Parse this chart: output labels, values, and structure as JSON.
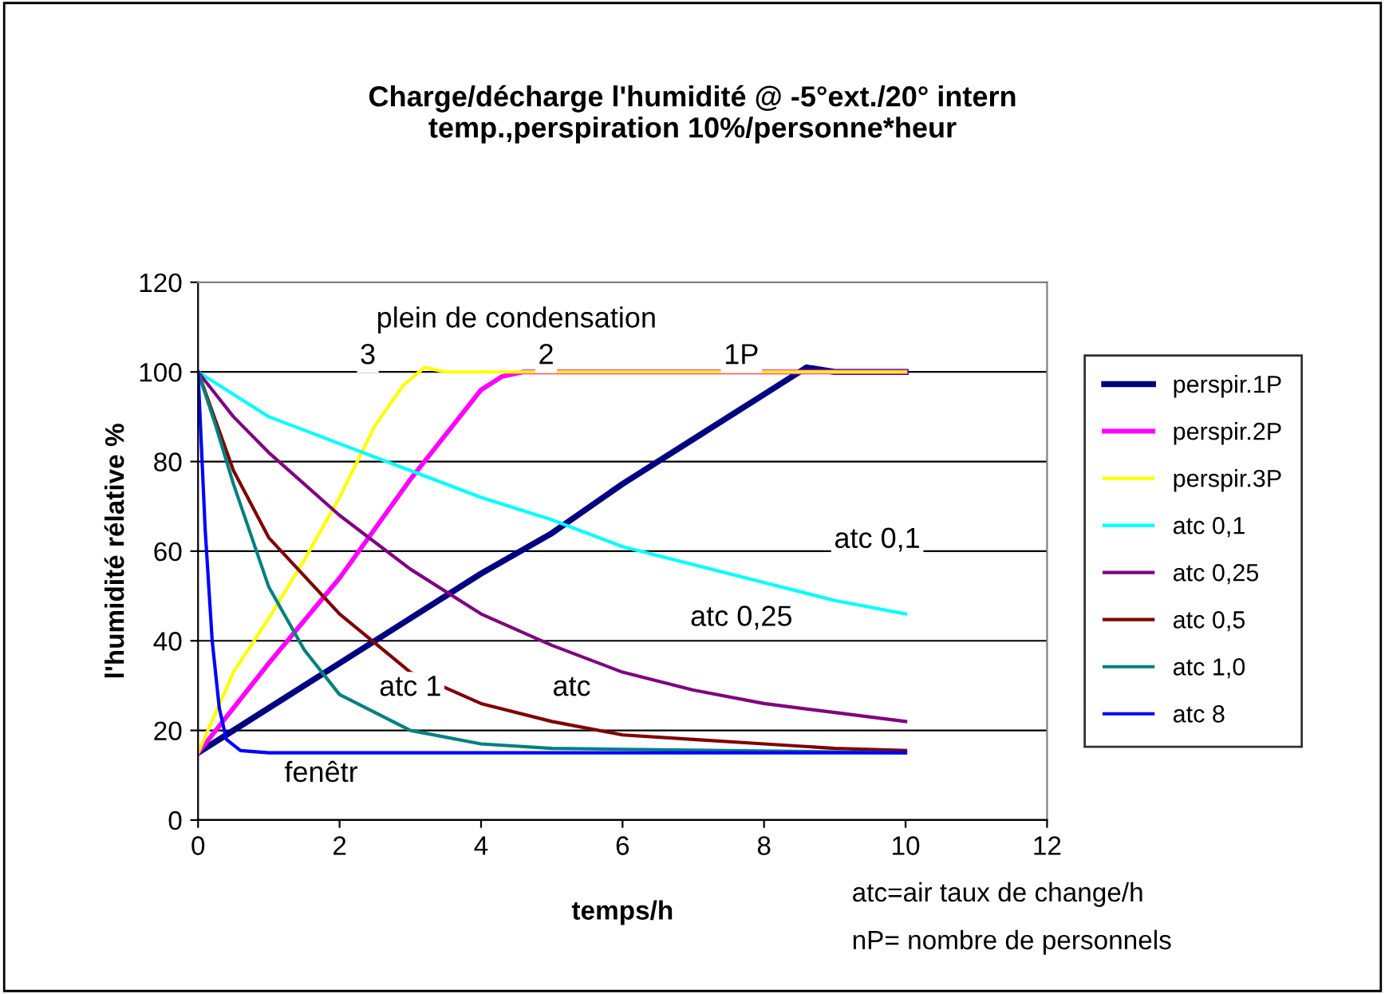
{
  "chart_data": {
    "type": "line",
    "title": "Charge/décharge l'humidité @ -5°ext./20° intern\ntemp.,perspiration 10%/personne*heur",
    "xlabel": "temps/h",
    "ylabel": "l'humidité rélative %",
    "xlim": [
      0,
      12
    ],
    "xticks": [
      0,
      2,
      4,
      6,
      8,
      10,
      12
    ],
    "ylim": [
      0,
      120
    ],
    "yticks": [
      0,
      20,
      40,
      60,
      80,
      100,
      120
    ],
    "grid": "y",
    "legend": "right",
    "marker": "none",
    "line_style": "solid",
    "series": [
      {
        "name": "perspir.1P",
        "color": "#000080",
        "x": [
          0,
          1,
          2,
          3,
          4,
          5,
          6,
          7,
          8,
          8.4,
          8.6,
          9,
          10
        ],
        "values": [
          15,
          25,
          35,
          45,
          55,
          64,
          75,
          85,
          95,
          99,
          101,
          100,
          100
        ]
      },
      {
        "name": "perspir.2P",
        "color": "#ff00ff",
        "x": [
          0,
          1,
          2,
          3,
          4,
          4.3,
          4.6,
          10
        ],
        "values": [
          15,
          35,
          54,
          76,
          96,
          99,
          100,
          100
        ]
      },
      {
        "name": "perspir.3P",
        "color": "#ffff00",
        "x": [
          0,
          0.5,
          1,
          1.5,
          2,
          2.5,
          2.9,
          3.2,
          3.5,
          10
        ],
        "values": [
          15,
          33,
          45,
          58,
          72,
          88,
          97,
          101,
          100,
          100
        ]
      },
      {
        "name": "atc 0,1",
        "color": "#00ffff",
        "x": [
          0,
          1,
          2,
          3,
          4,
          5,
          6,
          7,
          8,
          9,
          10
        ],
        "values": [
          100,
          90,
          84,
          78,
          72,
          67,
          61,
          57,
          53,
          49,
          46
        ]
      },
      {
        "name": "atc 0,25",
        "color": "#800080",
        "x": [
          0,
          0.5,
          1,
          2,
          3,
          4,
          5,
          6,
          7,
          8,
          9,
          10
        ],
        "values": [
          100,
          90,
          82,
          68,
          56,
          46,
          39,
          33,
          29,
          26,
          24,
          22
        ]
      },
      {
        "name": "atc 0,5",
        "color": "#800000",
        "x": [
          0,
          0.5,
          1,
          2,
          3,
          4,
          5,
          6,
          7,
          8,
          9,
          10
        ],
        "values": [
          100,
          78,
          63,
          46,
          33,
          26,
          22,
          19,
          18,
          17,
          16,
          15.5
        ]
      },
      {
        "name": "atc 1,0",
        "color": "#008080",
        "x": [
          0,
          0.25,
          0.5,
          1,
          1.5,
          2,
          3,
          4,
          5,
          10
        ],
        "values": [
          100,
          88,
          75,
          52,
          38,
          28,
          20,
          17,
          16,
          15
        ]
      },
      {
        "name": "atc 8",
        "color": "#0000ff",
        "x": [
          0,
          0.1,
          0.2,
          0.3,
          0.4,
          0.6,
          1,
          10
        ],
        "values": [
          100,
          65,
          40,
          25,
          18,
          15.5,
          15,
          15
        ]
      }
    ],
    "annotations": [
      "plein de condensation",
      "3",
      "2",
      "1P",
      "atc 0,1",
      "atc 0,25",
      "atc 1",
      "atc",
      "fenêtr",
      "atc=air taux de change/h",
      "nP= nombre de personnels"
    ]
  }
}
